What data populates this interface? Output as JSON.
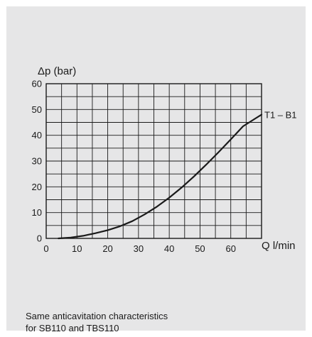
{
  "chart_data": {
    "type": "line",
    "ylabel": "Δp (bar)",
    "xlabel": "Q l/min",
    "xlim": [
      0,
      70
    ],
    "ylim": [
      0,
      60
    ],
    "x_ticks": [
      0,
      10,
      20,
      30,
      40,
      50,
      60
    ],
    "y_ticks": [
      0,
      10,
      20,
      30,
      40,
      50,
      60
    ],
    "grid": true,
    "series": [
      {
        "name": "T1 – B1",
        "x": [
          4,
          8,
          12,
          16,
          20,
          24,
          28,
          32,
          36,
          40,
          44,
          48,
          52,
          56,
          60,
          64,
          68,
          70
        ],
        "y": [
          0,
          0.3,
          1.0,
          2.0,
          3.2,
          4.7,
          6.7,
          9.3,
          12.3,
          15.8,
          19.7,
          24.0,
          28.6,
          33.4,
          38.4,
          43.5,
          46.5,
          48.0
        ]
      }
    ]
  },
  "caption": {
    "line1": "Same anticavitation characteristics",
    "line2": "for SB110 and TBS110"
  },
  "colors": {
    "background": "#e6e6e7",
    "grid": "#1a1a1a",
    "curve": "#1a1a1a"
  }
}
